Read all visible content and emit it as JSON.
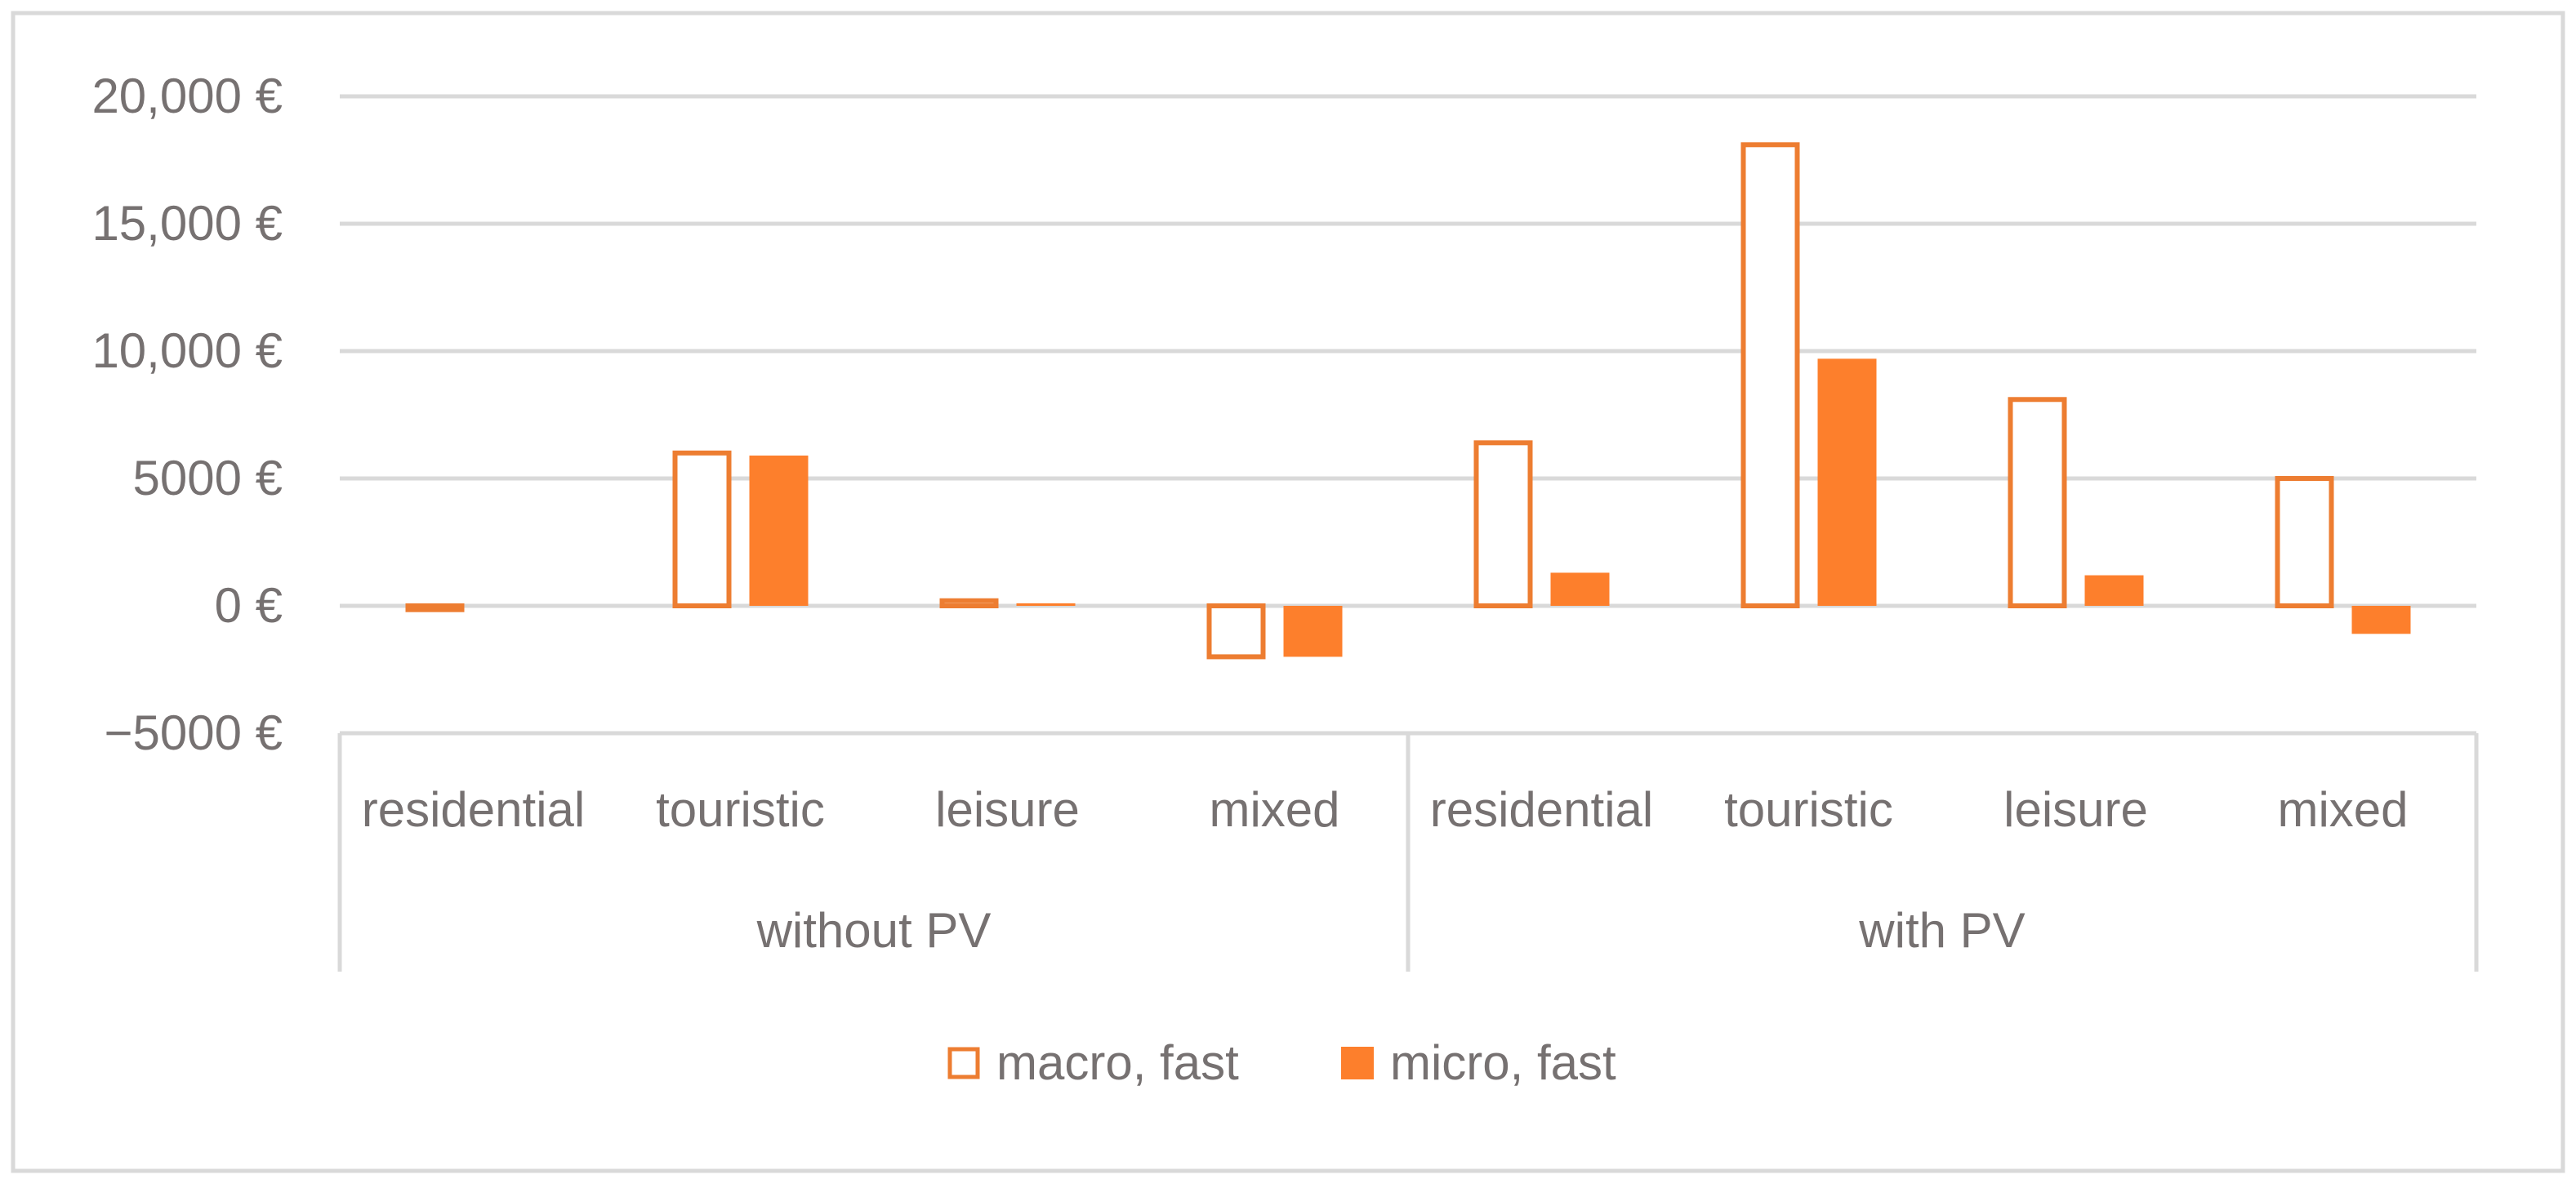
{
  "chart_data": {
    "type": "bar",
    "title": "",
    "xlabel": "",
    "ylabel": "",
    "ylim": [
      -5000,
      20000
    ],
    "yticks": [
      {
        "value": 20000,
        "label": "20,000 €"
      },
      {
        "value": 15000,
        "label": "15,000 €"
      },
      {
        "value": 10000,
        "label": "10,000 €"
      },
      {
        "value": 5000,
        "label": "5000 €"
      },
      {
        "value": 0,
        "label": "0 €"
      },
      {
        "value": -5000,
        "label": "−5000 €"
      }
    ],
    "grid": true,
    "legend_position": "bottom",
    "groups": [
      {
        "name": "without PV",
        "categories": [
          "residential",
          "touristic",
          "leisure",
          "mixed"
        ]
      },
      {
        "name": "with PV",
        "categories": [
          "residential",
          "touristic",
          "leisure",
          "mixed"
        ]
      }
    ],
    "series": [
      {
        "name": "macro, fast",
        "style": "outline",
        "color": "#ED7D31",
        "values": [
          -150,
          6000,
          200,
          -2000,
          6400,
          18100,
          8100,
          5000
        ]
      },
      {
        "name": "micro, fast",
        "style": "filled",
        "color": "#ED7D31",
        "values": [
          0,
          5900,
          100,
          -2000,
          1300,
          9700,
          1200,
          -1100
        ]
      }
    ],
    "colors": {
      "accent": "#ED7D31",
      "fill": "#FD7F2C",
      "grid": "#D9D9D9",
      "axis": "#D9D9D9",
      "text": "#767171",
      "border": "#D9D9D9"
    }
  }
}
